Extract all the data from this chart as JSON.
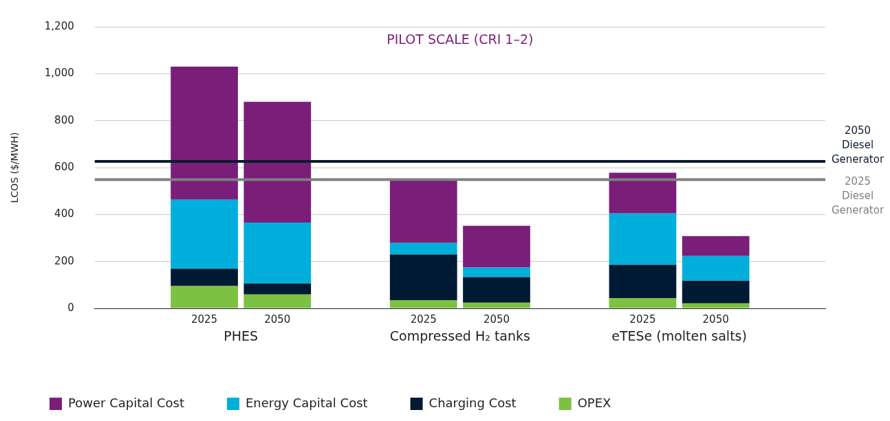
{
  "chart_data": {
    "type": "bar",
    "stacked": true,
    "title": "PILOT SCALE (CRI 1–2)",
    "ylabel": "LCOS ($/MWH)",
    "categories": [
      null,
      "2025",
      "2050",
      null,
      "2025",
      "2050",
      null,
      "2025",
      "2050",
      null
    ],
    "series": [
      {
        "name": "OPEX",
        "color": "#7dc142",
        "values": [
          null,
          95,
          59,
          null,
          35,
          24,
          null,
          44,
          21,
          null
        ]
      },
      {
        "name": "Charging Cost",
        "color": "#001a33",
        "values": [
          null,
          74,
          47,
          null,
          195,
          109,
          null,
          142,
          97,
          null
        ]
      },
      {
        "name": "Energy Capital Cost",
        "color": "#00aedb",
        "values": [
          null,
          294,
          260,
          null,
          49,
          41,
          null,
          219,
          105,
          null
        ]
      },
      {
        "name": "Power Capital Cost",
        "color": "#7a1e7a",
        "values": [
          null,
          567,
          514,
          null,
          270,
          178,
          null,
          173,
          85,
          null
        ]
      }
    ],
    "annotations": [
      "PHES",
      "Compressed H₂ tanks",
      "eTESe (molten salts)"
    ],
    "ylim": [
      0,
      1200
    ],
    "yticks": [
      0,
      200,
      400,
      600,
      800,
      {
        "value": 1000,
        "label": "1,000"
      },
      {
        "value": 1200,
        "label": "1,200"
      }
    ],
    "ref_lines": [
      {
        "axis": "y",
        "value": 626,
        "label": "2050 Diesel Generator",
        "color": "#0d1b2e"
      },
      {
        "axis": "y",
        "value": 549,
        "label": "2025 Diesel Generator",
        "color": "#7f7f80"
      }
    ],
    "grid": "y",
    "legend": "bottom"
  }
}
